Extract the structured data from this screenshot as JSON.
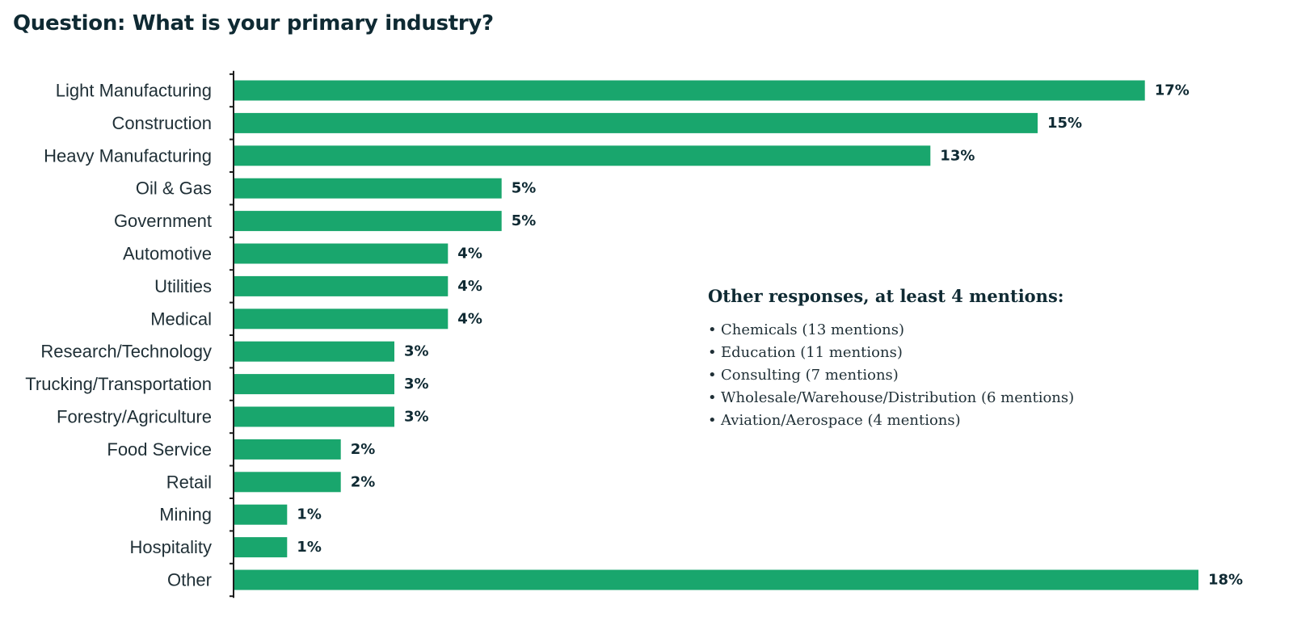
{
  "title": "Question: What is your primary industry?",
  "colors": {
    "bar": "#19a66d",
    "text": "#0f2a33"
  },
  "chart_data": {
    "type": "bar",
    "orientation": "horizontal",
    "title": "Question: What is your primary industry?",
    "categories": [
      "Light Manufacturing",
      "Construction",
      "Heavy Manufacturing",
      "Oil & Gas",
      "Government",
      "Automotive",
      "Utilities",
      "Medical",
      "Research/Technology",
      "Trucking/Transportation",
      "Forestry/Agriculture",
      "Food Service",
      "Retail",
      "Mining",
      "Hospitality",
      "Other"
    ],
    "values": [
      17,
      15,
      13,
      5,
      5,
      4,
      4,
      4,
      3,
      3,
      3,
      2,
      2,
      1,
      1,
      18
    ],
    "labels": [
      "17%",
      "15%",
      "13%",
      "5%",
      "5%",
      "4%",
      "4%",
      "4%",
      "3%",
      "3%",
      "3%",
      "2%",
      "2%",
      "1%",
      "1%",
      "18%"
    ],
    "xlabel": "",
    "ylabel": "",
    "xlim": [
      0,
      18
    ],
    "grid": false,
    "legend": "none"
  },
  "notes": {
    "heading": "Other responses, at least 4 mentions:",
    "bullet": "•",
    "items": [
      "Chemicals (13 mentions)",
      "Education (11 mentions)",
      "Consulting (7 mentions)",
      "Wholesale/Warehouse/Distribution (6 mentions)",
      "Aviation/Aerospace (4 mentions)"
    ]
  }
}
